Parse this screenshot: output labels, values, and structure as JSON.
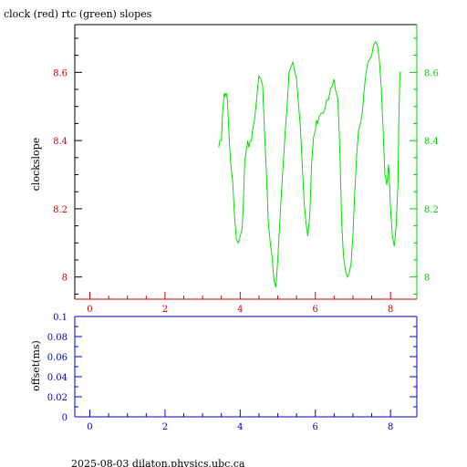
{
  "footer": "2025-08-03  dilaton.physics.ubc.ca",
  "chart_data": [
    {
      "type": "line",
      "title": "clock (red) rtc (green) slopes",
      "ylabel": "clockslope",
      "xlim": [
        -0.4,
        8.7
      ],
      "ylim": [
        7.935,
        8.74
      ],
      "x_ticks": [
        0,
        2,
        4,
        6,
        8
      ],
      "x_tick_labels": [
        "0",
        "2",
        "4",
        "6",
        "8"
      ],
      "y_ticks_left": [
        8,
        8.2,
        8.4,
        8.6
      ],
      "y_tick_labels_left": [
        "8",
        "8.2",
        "8.4",
        "8.6"
      ],
      "y_ticks_right": [
        8,
        8.2,
        8.4,
        8.6
      ],
      "y_tick_labels_right": [
        "8",
        "8.2",
        "8.4",
        "8.6"
      ],
      "colors": {
        "left_axis": "#d40000",
        "right_axis": "#00cc00",
        "line": "#00e000"
      },
      "series": [
        {
          "color": "#00e000",
          "x": [
            3.43,
            3.46,
            3.5,
            3.53,
            3.56,
            3.58,
            3.6,
            3.63,
            3.66,
            3.69,
            3.72,
            3.75,
            3.8,
            3.85,
            3.9,
            3.95,
            4.0,
            4.05,
            4.08,
            4.12,
            4.16,
            4.18,
            4.2,
            4.23,
            4.27,
            4.3,
            4.33,
            4.38,
            4.42,
            4.46,
            4.5,
            4.55,
            4.6,
            4.65,
            4.7,
            4.75,
            4.8,
            4.85,
            4.9,
            4.95,
            5.0,
            5.05,
            5.1,
            5.15,
            5.2,
            5.25,
            5.3,
            5.4,
            5.5,
            5.6,
            5.7,
            5.75,
            5.8,
            5.85,
            5.9,
            5.95,
            6.0,
            6.03,
            6.06,
            6.1,
            6.15,
            6.2,
            6.25,
            6.3,
            6.35,
            6.4,
            6.45,
            6.5,
            6.53,
            6.56,
            6.6,
            6.65,
            6.7,
            6.75,
            6.8,
            6.85,
            6.9,
            6.95,
            7.0,
            7.05,
            7.1,
            7.15,
            7.2,
            7.25,
            7.3,
            7.35,
            7.4,
            7.45,
            7.5,
            7.55,
            7.6,
            7.65,
            7.7,
            7.75,
            7.8,
            7.85,
            7.9,
            7.95,
            8.0,
            8.05,
            8.1,
            8.15,
            8.2,
            8.22,
            8.25,
            8.27
          ],
          "y": [
            8.38,
            8.4,
            8.4,
            8.48,
            8.52,
            8.54,
            8.53,
            8.54,
            8.52,
            8.45,
            8.38,
            8.33,
            8.28,
            8.18,
            8.11,
            8.1,
            8.12,
            8.14,
            8.2,
            8.34,
            8.37,
            8.38,
            8.4,
            8.38,
            8.4,
            8.4,
            8.43,
            8.46,
            8.5,
            8.55,
            8.59,
            8.58,
            8.56,
            8.42,
            8.3,
            8.16,
            8.1,
            8.06,
            7.99,
            7.97,
            8.05,
            8.15,
            8.25,
            8.34,
            8.43,
            8.5,
            8.6,
            8.63,
            8.58,
            8.44,
            8.22,
            8.16,
            8.12,
            8.18,
            8.33,
            8.41,
            8.43,
            8.46,
            8.45,
            8.47,
            8.48,
            8.48,
            8.49,
            8.52,
            8.52,
            8.55,
            8.56,
            8.58,
            8.55,
            8.54,
            8.52,
            8.38,
            8.16,
            8.06,
            8.02,
            8.0,
            8.01,
            8.04,
            8.12,
            8.25,
            8.36,
            8.43,
            8.45,
            8.48,
            8.55,
            8.6,
            8.63,
            8.64,
            8.65,
            8.68,
            8.69,
            8.68,
            8.64,
            8.56,
            8.44,
            8.3,
            8.27,
            8.33,
            8.2,
            8.12,
            8.09,
            8.15,
            8.28,
            8.45,
            8.6,
            8.6
          ]
        }
      ]
    },
    {
      "type": "line",
      "title": "",
      "ylabel": "offset(ms)",
      "xlim": [
        -0.4,
        8.7
      ],
      "ylim": [
        0,
        0.1
      ],
      "x_ticks": [
        0,
        2,
        4,
        6,
        8
      ],
      "x_tick_labels": [
        "0",
        "2",
        "4",
        "6",
        "8"
      ],
      "y_ticks": [
        0,
        0.02,
        0.04,
        0.06,
        0.08,
        0.1
      ],
      "y_tick_labels": [
        "0",
        "0.02",
        "0.04",
        "0.06",
        "0.08",
        "0.1"
      ],
      "colors": {
        "axis": "#0000cc"
      },
      "series": []
    }
  ]
}
